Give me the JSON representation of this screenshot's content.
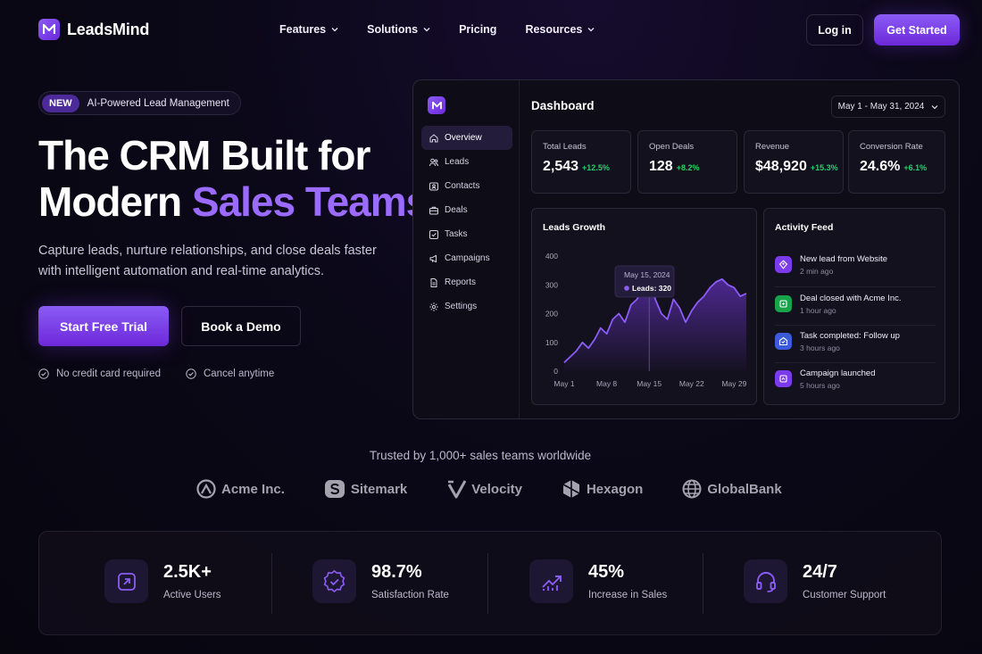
{
  "brand": {
    "name": "LeadsMind",
    "accent": "#8b5cf6"
  },
  "nav": {
    "items": [
      {
        "label": "Features",
        "has_dropdown": true
      },
      {
        "label": "Solutions",
        "has_dropdown": true
      },
      {
        "label": "Pricing",
        "has_dropdown": false
      },
      {
        "label": "Resources",
        "has_dropdown": true
      }
    ],
    "login": "Log in",
    "get_started": "Get Started"
  },
  "hero": {
    "badge_new": "NEW",
    "badge_text": "AI-Powered Lead Management",
    "title_line1": "The CRM Built for",
    "title_line2_plain": "Modern ",
    "title_line2_accent": "Sales Teams",
    "subtitle": "Capture leads, nurture relationships, and close deals faster with intelligent automation and real-time analytics.",
    "cta_primary": "Start Free Trial",
    "cta_secondary": "Book a Demo",
    "checks": [
      "No credit card required",
      "Cancel anytime"
    ]
  },
  "dashboard": {
    "title": "Dashboard",
    "date_range": "May 1 - May 31, 2024",
    "menu": [
      {
        "label": "Overview",
        "icon": "home-icon",
        "active": true
      },
      {
        "label": "Leads",
        "icon": "users-icon",
        "active": false
      },
      {
        "label": "Contacts",
        "icon": "contact-card-icon",
        "active": false
      },
      {
        "label": "Deals",
        "icon": "briefcase-icon",
        "active": false
      },
      {
        "label": "Tasks",
        "icon": "checkbox-icon",
        "active": false
      },
      {
        "label": "Campaigns",
        "icon": "megaphone-icon",
        "active": false
      },
      {
        "label": "Reports",
        "icon": "document-icon",
        "active": false
      },
      {
        "label": "Settings",
        "icon": "gear-icon",
        "active": false
      }
    ],
    "kpis": [
      {
        "label": "Total Leads",
        "value": "2,543",
        "delta": "+12.5%"
      },
      {
        "label": "Open Deals",
        "value": "128",
        "delta": "+8.2%"
      },
      {
        "label": "Revenue",
        "value": "$48,920",
        "delta": "+15.3%"
      },
      {
        "label": "Conversion Rate",
        "value": "24.6%",
        "delta": "+6.1%"
      }
    ],
    "leads_growth": {
      "title": "Leads Growth",
      "tooltip_date": "May 15, 2024",
      "tooltip_value": "Leads: 320"
    },
    "activity": {
      "title": "Activity Feed",
      "items": [
        {
          "title": "New lead from Website",
          "time": "2 min ago",
          "icon": "user-plus-icon",
          "color": "#7c3aed"
        },
        {
          "title": "Deal closed with Acme Inc.",
          "time": "1 hour ago",
          "icon": "dollar-icon",
          "color": "#16a34a"
        },
        {
          "title": "Task completed: Follow up",
          "time": "3 hours ago",
          "icon": "check-icon",
          "color": "#3b5bdb"
        },
        {
          "title": "Campaign launched",
          "time": "5 hours ago",
          "icon": "megaphone-icon",
          "color": "#7c3aed"
        }
      ]
    }
  },
  "chart_data": {
    "type": "area",
    "title": "Leads Growth",
    "x_ticks": [
      "May 1",
      "May 8",
      "May 15",
      "May 22",
      "May 29"
    ],
    "y_ticks": [
      0,
      100,
      200,
      300,
      400
    ],
    "ylim": [
      0,
      400
    ],
    "x": [
      1,
      2,
      3,
      4,
      5,
      6,
      7,
      8,
      9,
      10,
      11,
      12,
      13,
      14,
      15,
      16,
      17,
      18,
      19,
      20,
      21,
      22,
      23,
      24,
      25,
      26,
      27,
      28,
      29,
      30,
      31
    ],
    "series": [
      {
        "values": [
          30,
          50,
          70,
          100,
          80,
          110,
          150,
          130,
          180,
          200,
          170,
          230,
          250,
          290,
          320,
          250,
          200,
          180,
          250,
          220,
          170,
          210,
          240,
          260,
          290,
          310,
          320,
          300,
          290,
          260,
          270
        ]
      }
    ],
    "tooltip": {
      "x": "May 15, 2024",
      "label": "Leads: 320"
    }
  },
  "trusted": {
    "heading": "Trusted by 1,000+ sales teams worldwide",
    "brands": [
      {
        "name": "Acme Inc.",
        "icon": "acme-logo-icon"
      },
      {
        "name": "Sitemark",
        "icon": "sitemark-logo-icon"
      },
      {
        "name": "Velocity",
        "icon": "velocity-logo-icon"
      },
      {
        "name": "Hexagon",
        "icon": "hexagon-logo-icon"
      },
      {
        "name": "GlobalBank",
        "icon": "globe-logo-icon"
      }
    ]
  },
  "stats": [
    {
      "value": "2.5K+",
      "label": "Active Users",
      "icon": "user-card-icon"
    },
    {
      "value": "98.7%",
      "label": "Satisfaction Rate",
      "icon": "badge-check-icon"
    },
    {
      "value": "45%",
      "label": "Increase in Sales",
      "icon": "trending-up-icon"
    },
    {
      "value": "24/7",
      "label": "Customer Support",
      "icon": "headset-icon"
    }
  ]
}
